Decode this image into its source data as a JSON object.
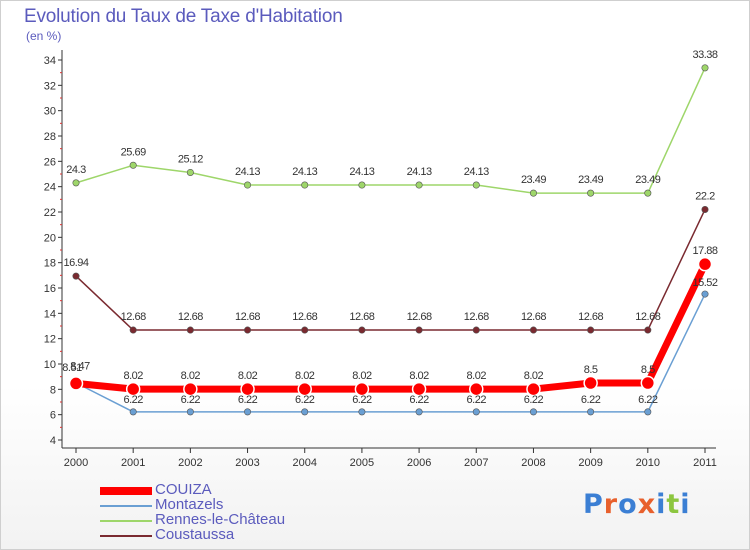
{
  "title": "Evolution du Taux de Taxe d'Habitation",
  "unit": "(en %)",
  "brand": {
    "letters": [
      "P",
      "r",
      "o",
      "x",
      "i",
      "t",
      "i"
    ],
    "colors": [
      "#3b7fd4",
      "#e8602c",
      "#3b7fd4",
      "#e8602c",
      "#3b7fd4",
      "#8cc63f",
      "#3b7fd4"
    ]
  },
  "chart_data": {
    "type": "line",
    "title": "Evolution du Taux de Taxe d'Habitation",
    "ylabel": "(en %)",
    "xlabel": "",
    "x": [
      "2000",
      "2001",
      "2002",
      "2003",
      "2004",
      "2005",
      "2006",
      "2007",
      "2008",
      "2009",
      "2010",
      "2011"
    ],
    "ylim": [
      4,
      34
    ],
    "yticks": [
      4,
      6,
      8,
      10,
      12,
      14,
      16,
      18,
      20,
      22,
      24,
      26,
      28,
      30,
      32,
      34
    ],
    "grid": false,
    "legend": "bottom-left",
    "series": [
      {
        "name": "COUIZA",
        "color": "#ff0000",
        "values": [
          8.47,
          8.02,
          8.02,
          8.02,
          8.02,
          8.02,
          8.02,
          8.02,
          8.02,
          8.5,
          8.5,
          17.88
        ],
        "labels": [
          "8.47",
          "8.02",
          "8.02",
          "8.02",
          "8.02",
          "8.02",
          "8.02",
          "8.02",
          "8.02",
          "8.5",
          "8.5",
          "17.88"
        ]
      },
      {
        "name": "Montazels",
        "color": "#6a9fd3",
        "values": [
          8.51,
          6.22,
          6.22,
          6.22,
          6.22,
          6.22,
          6.22,
          6.22,
          6.22,
          6.22,
          6.22,
          15.52
        ],
        "labels": [
          "8.51",
          "6.22",
          "6.22",
          "6.22",
          "6.22",
          "6.22",
          "6.22",
          "6.22",
          "6.22",
          "6.22",
          "6.22",
          "15.52"
        ]
      },
      {
        "name": "Rennes-le-Château",
        "color": "#9ed66a",
        "values": [
          24.3,
          25.69,
          25.12,
          24.13,
          24.13,
          24.13,
          24.13,
          24.13,
          23.49,
          23.49,
          23.49,
          33.38
        ],
        "labels": [
          "24.3",
          "25.69",
          "25.12",
          "24.13",
          "24.13",
          "24.13",
          "24.13",
          "24.13",
          "23.49",
          "23.49",
          "23.49",
          "33.38"
        ]
      },
      {
        "name": "Coustaussa",
        "color": "#7a2a30",
        "values": [
          16.94,
          12.68,
          12.68,
          12.68,
          12.68,
          12.68,
          12.68,
          12.68,
          12.68,
          12.68,
          12.68,
          22.2
        ],
        "labels": [
          "16.94",
          "12.68",
          "12.68",
          "12.68",
          "12.68",
          "12.68",
          "12.68",
          "12.68",
          "12.68",
          "12.68",
          "12.68",
          "22.2"
        ]
      }
    ]
  }
}
